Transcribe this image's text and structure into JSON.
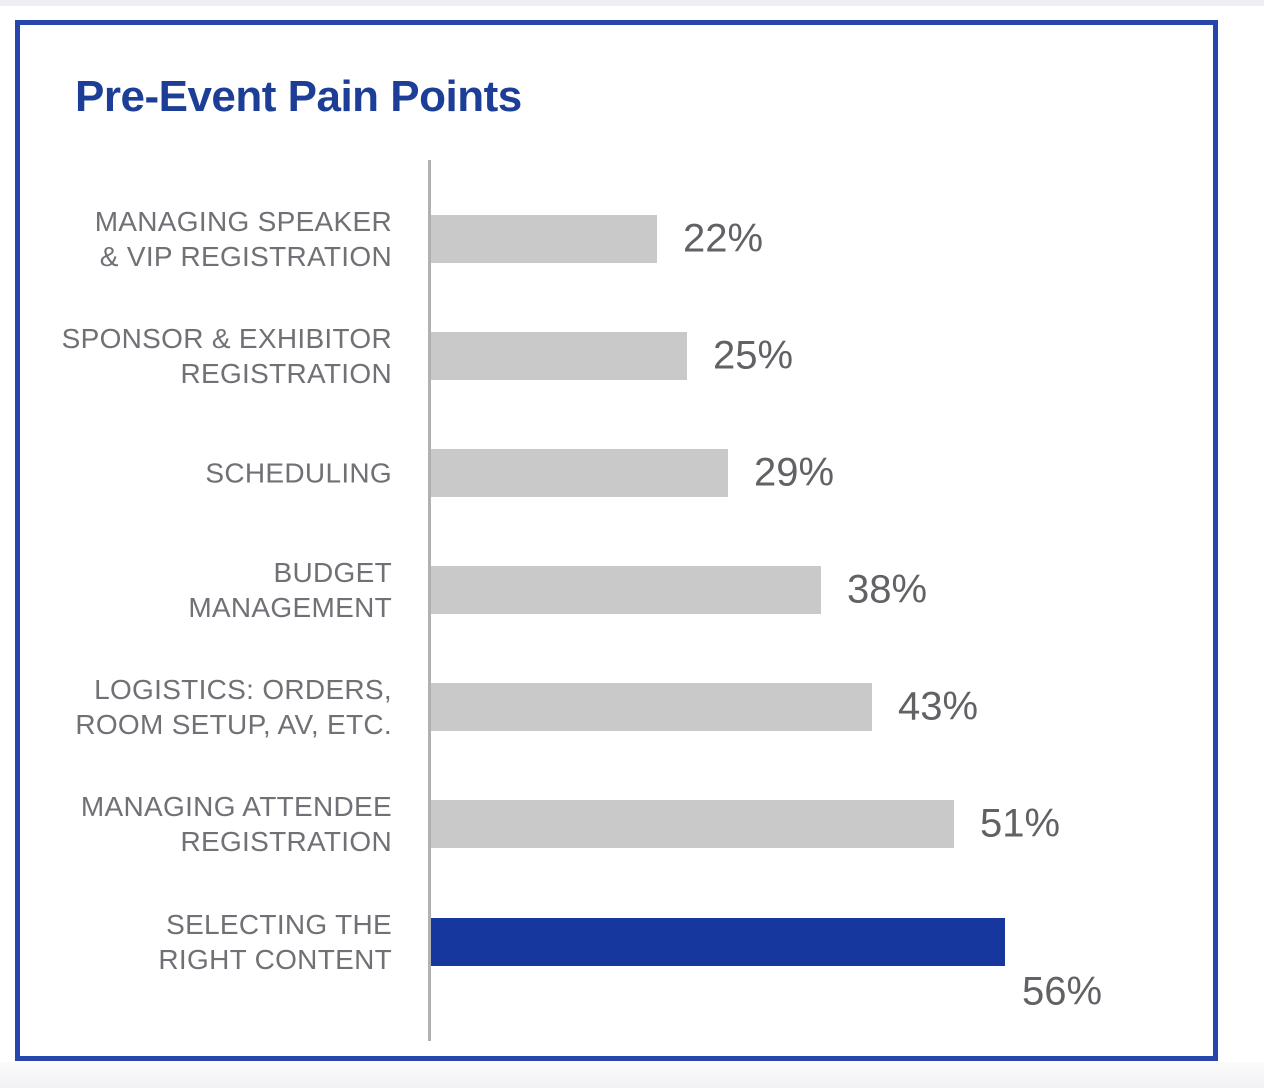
{
  "page": {
    "top_strip_color": "#edeff5",
    "footer_strip_color": "#f2f2f4",
    "frame_border_color": "#2746ad",
    "background_color": "#ffffff"
  },
  "chart_data": {
    "type": "bar",
    "orientation": "horizontal",
    "title": "Pre-Event Pain Points",
    "title_color": "#1d3e96",
    "categories": [
      "MANAGING SPEAKER & VIP REGISTRATION",
      "SPONSOR & EXHIBITOR REGISTRATION",
      "SCHEDULING",
      "BUDGET MANAGEMENT",
      "LOGISTICS: ORDERS, ROOM SETUP, AV, ETC.",
      "MANAGING ATTENDEE REGISTRATION",
      "SELECTING THE RIGHT CONTENT"
    ],
    "values": [
      22,
      25,
      29,
      38,
      43,
      51,
      56
    ],
    "unit": "%",
    "grid": false,
    "legend": false,
    "bar_color_default": "#c9c9ca",
    "bar_color_highlight": "#16379d",
    "axis_color": "#b1b1b4",
    "label_color": "#707076",
    "value_color": "#626266",
    "rows": [
      {
        "label_lines": [
          "MANAGING SPEAKER",
          "& VIP REGISTRATION"
        ],
        "value": 22,
        "value_label": "22%",
        "highlight": false
      },
      {
        "label_lines": [
          "SPONSOR & EXHIBITOR",
          "REGISTRATION"
        ],
        "value": 25,
        "value_label": "25%",
        "highlight": false
      },
      {
        "label_lines": [
          "SCHEDULING"
        ],
        "value": 29,
        "value_label": "29%",
        "highlight": false
      },
      {
        "label_lines": [
          "BUDGET",
          "MANAGEMENT"
        ],
        "value": 38,
        "value_label": "38%",
        "highlight": false
      },
      {
        "label_lines": [
          "LOGISTICS: ORDERS,",
          "ROOM SETUP, AV, ETC."
        ],
        "value": 43,
        "value_label": "43%",
        "highlight": false
      },
      {
        "label_lines": [
          "MANAGING ATTENDEE",
          "REGISTRATION"
        ],
        "value": 51,
        "value_label": "51%",
        "highlight": false
      },
      {
        "label_lines": [
          "SELECTING THE",
          "RIGHT CONTENT"
        ],
        "value": 56,
        "value_label": "56%",
        "highlight": true
      }
    ]
  }
}
